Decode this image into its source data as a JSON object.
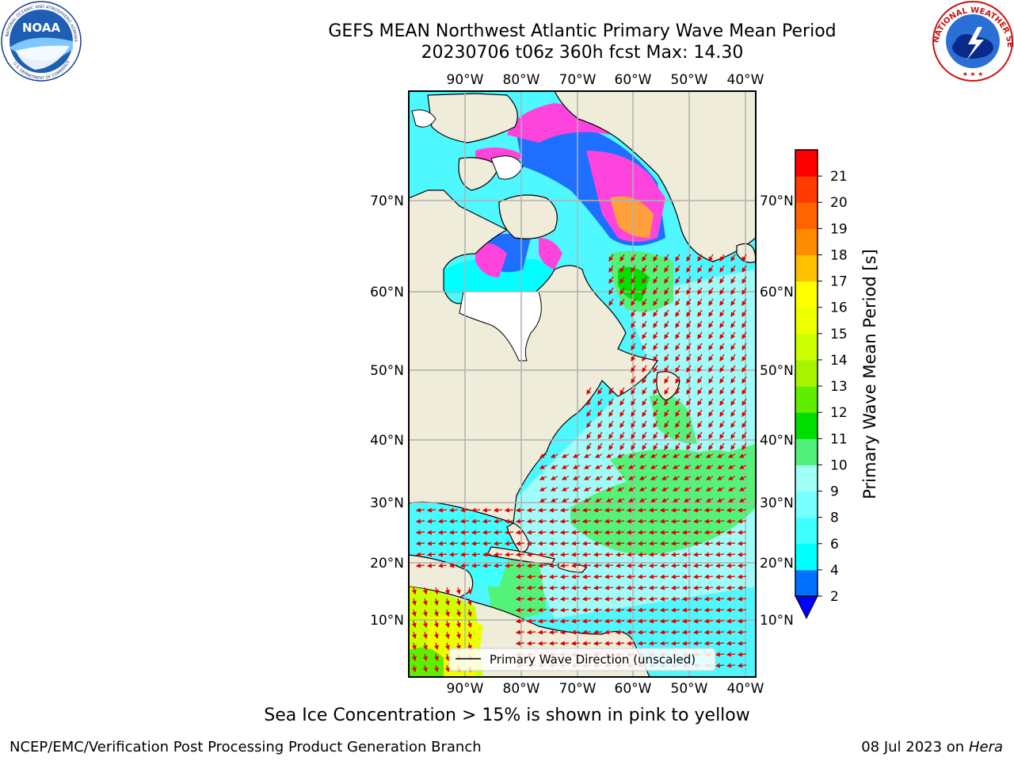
{
  "header": {
    "title_line1": "GEFS MEAN Northwest Atlantic Primary Wave Mean Period",
    "title_line2": "20230706 t06z 360h fcst   Max: 14.30"
  },
  "logos": {
    "left": "noaa-logo",
    "right": "nws-logo",
    "noaa_text": "NOAA",
    "noaa_ring_text": "NATIONAL OCEANIC AND ATMOSPHERIC ADMINISTRATION",
    "noaa_ring_text_bottom": "U.S. DEPARTMENT OF COMMERCE",
    "nws_ring_text": "NATIONAL WEATHER SERVICE"
  },
  "map": {
    "lon_ticks": [
      "90°W",
      "80°W",
      "70°W",
      "60°W",
      "50°W",
      "40°W"
    ],
    "lat_ticks": [
      "70°N",
      "60°N",
      "50°N",
      "40°N",
      "30°N",
      "20°N",
      "10°N"
    ],
    "legend_label": "Primary Wave Direction (unscaled)",
    "colors": {
      "land": "#efecda",
      "ocean_low": "#00ffff",
      "ocean_mid": "#9ffcf8",
      "ocean_green": "#55f27a",
      "green_strong": "#00e000",
      "tropical_yellow": "#ccff00",
      "ice_pink": "#ff44dd",
      "ice_orange": "#ffa03c",
      "arrows": "#e00000",
      "grid": "#b0b0b0"
    }
  },
  "colorbar": {
    "label": "Primary Wave Mean Period [s]",
    "ticks": [
      "2",
      "4",
      "6",
      "8",
      "9",
      "10",
      "11",
      "12",
      "13",
      "14",
      "15",
      "16",
      "17",
      "18",
      "19",
      "20",
      "21"
    ],
    "colors": [
      "#0070ff",
      "#00ffff",
      "#40ffff",
      "#78ffff",
      "#a0fff6",
      "#50f07a",
      "#00dd00",
      "#60ee00",
      "#a8f400",
      "#ccff00",
      "#eeff00",
      "#ffff00",
      "#ffc000",
      "#ff8c00",
      "#ff6400",
      "#ff3c00",
      "#ff0000"
    ],
    "extend_min_color": "#0000ff"
  },
  "footer": {
    "note": "Sea Ice Concentration > 15% is shown in pink to yellow",
    "left": "NCEP/EMC/Verification Post Processing Product Generation Branch",
    "right_date": "08 Jul 2023 on ",
    "right_machine": "Hera"
  }
}
